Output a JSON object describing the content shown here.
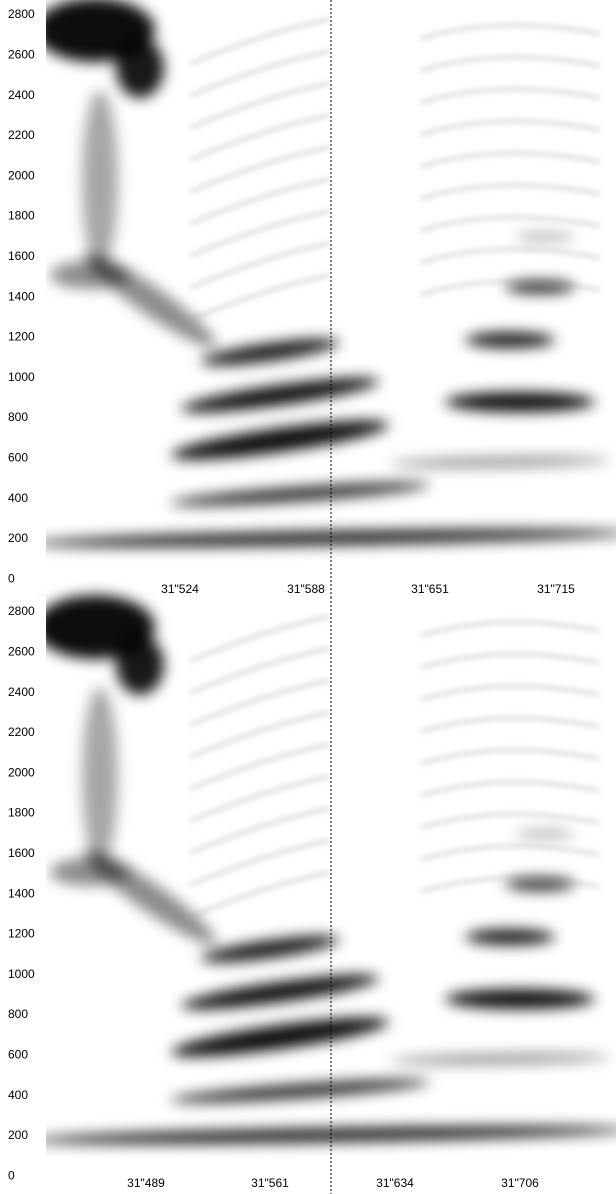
{
  "panels": [
    {
      "yticks": [
        "2800",
        "2600",
        "2400",
        "2200",
        "2000",
        "1800",
        "1600",
        "1400",
        "1200",
        "1000",
        "800",
        "600",
        "400",
        "200",
        "0"
      ],
      "xticks": [
        "31\"524",
        "31\"588",
        "31\"651",
        "31\"715"
      ]
    },
    {
      "yticks": [
        "2800",
        "2600",
        "2400",
        "2200",
        "2000",
        "1800",
        "1600",
        "1400",
        "1200",
        "1000",
        "800",
        "600",
        "400",
        "200",
        "0"
      ],
      "xticks": [
        "31\"489",
        "31\"561",
        "31\"634",
        "31\"706"
      ]
    }
  ]
}
